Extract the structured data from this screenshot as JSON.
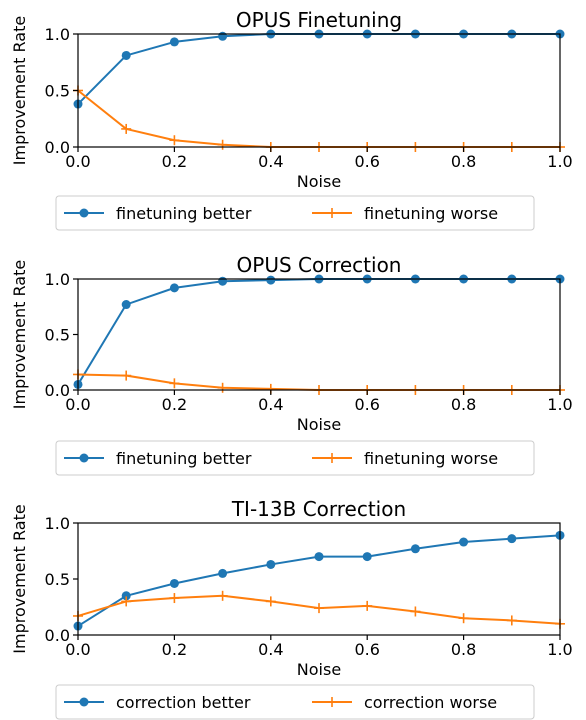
{
  "colors": {
    "series_a": "#1f77b4",
    "series_b": "#ff7f0e",
    "axis": "#000000",
    "legend_border": "#cccccc"
  },
  "chart_data": [
    {
      "type": "line",
      "title": "OPUS Finetuning",
      "xlabel": "Noise",
      "ylabel": "Improvement Rate",
      "xlim": [
        0.0,
        1.0
      ],
      "ylim": [
        0.0,
        1.0
      ],
      "xticks": [
        "0.0",
        "0.2",
        "0.4",
        "0.6",
        "0.8",
        "1.0"
      ],
      "yticks": [
        "0.0",
        "0.5",
        "1.0"
      ],
      "grid": false,
      "legend_position": "below",
      "x": [
        0.0,
        0.1,
        0.2,
        0.3,
        0.4,
        0.5,
        0.6,
        0.7,
        0.8,
        0.9,
        1.0
      ],
      "series": [
        {
          "name": "finetuning better",
          "marker": "circle",
          "color": "#1f77b4",
          "values": [
            0.38,
            0.81,
            0.93,
            0.98,
            1.0,
            1.0,
            1.0,
            1.0,
            1.0,
            1.0,
            1.0
          ]
        },
        {
          "name": "finetuning worse",
          "marker": "plus",
          "color": "#ff7f0e",
          "values": [
            0.5,
            0.16,
            0.06,
            0.02,
            0.0,
            0.0,
            0.0,
            0.0,
            0.0,
            0.0,
            0.0
          ]
        }
      ]
    },
    {
      "type": "line",
      "title": "OPUS Correction",
      "xlabel": "Noise",
      "ylabel": "Improvement Rate",
      "xlim": [
        0.0,
        1.0
      ],
      "ylim": [
        0.0,
        1.0
      ],
      "xticks": [
        "0.0",
        "0.2",
        "0.4",
        "0.6",
        "0.8",
        "1.0"
      ],
      "yticks": [
        "0.0",
        "0.5",
        "1.0"
      ],
      "grid": false,
      "legend_position": "below",
      "x": [
        0.0,
        0.1,
        0.2,
        0.3,
        0.4,
        0.5,
        0.6,
        0.7,
        0.8,
        0.9,
        1.0
      ],
      "series": [
        {
          "name": "finetuning better",
          "marker": "circle",
          "color": "#1f77b4",
          "values": [
            0.05,
            0.77,
            0.92,
            0.98,
            0.99,
            1.0,
            1.0,
            1.0,
            1.0,
            1.0,
            1.0
          ]
        },
        {
          "name": "finetuning worse",
          "marker": "plus",
          "color": "#ff7f0e",
          "values": [
            0.14,
            0.13,
            0.06,
            0.02,
            0.01,
            0.0,
            0.0,
            0.0,
            0.0,
            0.0,
            0.0
          ]
        }
      ]
    },
    {
      "type": "line",
      "title": "TI-13B Correction",
      "xlabel": "Noise",
      "ylabel": "Improvement Rate",
      "xlim": [
        0.0,
        1.0
      ],
      "ylim": [
        0.0,
        1.0
      ],
      "xticks": [
        "0.0",
        "0.2",
        "0.4",
        "0.6",
        "0.8",
        "1.0"
      ],
      "yticks": [
        "0.0",
        "0.5",
        "1.0"
      ],
      "grid": false,
      "legend_position": "below",
      "x": [
        0.0,
        0.1,
        0.2,
        0.3,
        0.4,
        0.5,
        0.6,
        0.7,
        0.8,
        0.9,
        1.0
      ],
      "series": [
        {
          "name": "correction better",
          "marker": "circle",
          "color": "#1f77b4",
          "values": [
            0.08,
            0.35,
            0.46,
            0.55,
            0.63,
            0.7,
            0.7,
            0.77,
            0.83,
            0.86,
            0.89
          ]
        },
        {
          "name": "correction worse",
          "marker": "plus",
          "color": "#ff7f0e",
          "values": [
            0.17,
            0.3,
            0.33,
            0.35,
            0.3,
            0.24,
            0.26,
            0.21,
            0.15,
            0.13,
            0.1
          ]
        }
      ]
    }
  ]
}
